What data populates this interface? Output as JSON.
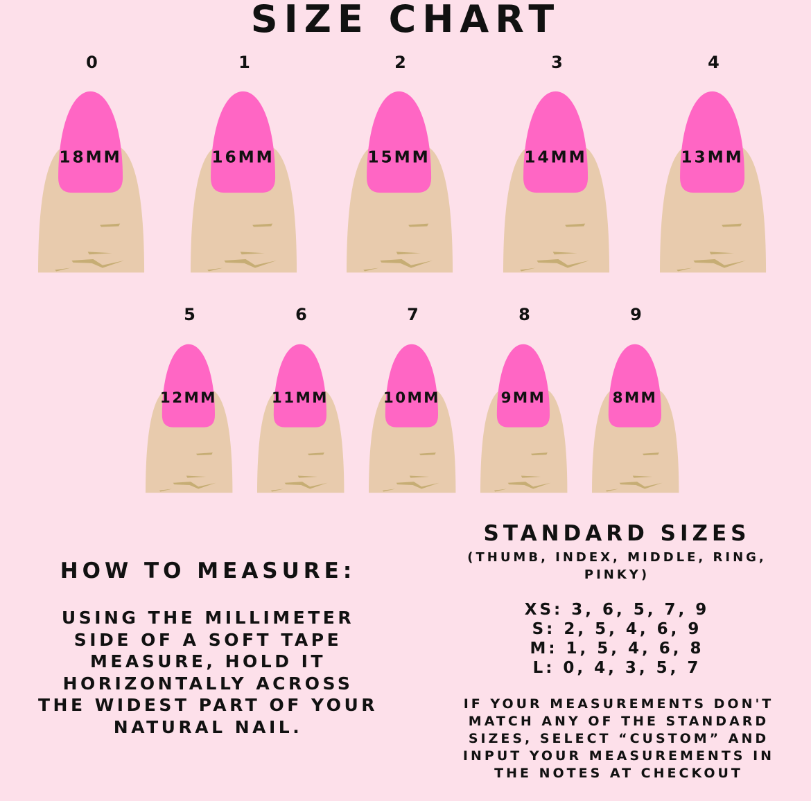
{
  "title": "SIZE CHART",
  "colors": {
    "background": "#fde0ea",
    "nail": "#ff66c4",
    "skin": "#e8cbad",
    "crease": "#c6ad74"
  },
  "sizes": [
    {
      "number": "0",
      "label": "18MM"
    },
    {
      "number": "1",
      "label": "16MM"
    },
    {
      "number": "2",
      "label": "15MM"
    },
    {
      "number": "3",
      "label": "14MM"
    },
    {
      "number": "4",
      "label": "13MM"
    },
    {
      "number": "5",
      "label": "12MM"
    },
    {
      "number": "6",
      "label": "11MM"
    },
    {
      "number": "7",
      "label": "10MM"
    },
    {
      "number": "8",
      "label": "9MM"
    },
    {
      "number": "9",
      "label": "8MM"
    }
  ],
  "how_to_measure": {
    "title": "HOW TO MEASURE:",
    "lines": [
      "USING THE MILLIMETER",
      "SIDE OF A SOFT TAPE",
      "MEASURE, HOLD IT",
      "HORIZONTALLY ACROSS",
      "THE WIDEST PART OF YOUR",
      "NATURAL NAIL."
    ]
  },
  "standard_sizes": {
    "title": "STANDARD SIZES",
    "subtitle_lines": [
      "(THUMB, INDEX, MIDDLE, RING,",
      "PINKY)"
    ],
    "rows": [
      "XS: 3, 6, 5, 7, 9",
      "S: 2, 5, 4, 6, 9",
      "M: 1, 5, 4, 6, 8",
      "L: 0, 4, 3, 5, 7"
    ],
    "note_lines": [
      "IF YOUR MEASUREMENTS DON'T",
      "MATCH ANY OF THE STANDARD",
      "SIZES, SELECT “CUSTOM” AND",
      "INPUT YOUR MEASUREMENTS IN",
      "THE NOTES AT CHECKOUT"
    ]
  }
}
